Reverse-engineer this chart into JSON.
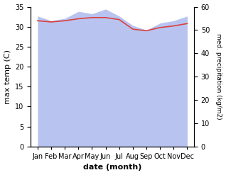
{
  "months": [
    "Jan",
    "Feb",
    "Mar",
    "Apr",
    "May",
    "Jun",
    "Jul",
    "Aug",
    "Sep",
    "Oct",
    "Nov",
    "Dec"
  ],
  "max_temp": [
    31.5,
    31.2,
    31.5,
    32.0,
    32.3,
    32.3,
    31.8,
    29.4,
    29.0,
    29.8,
    30.2,
    30.8
  ],
  "precipitation": [
    56,
    54,
    55,
    58,
    57,
    59,
    56,
    52,
    50,
    53,
    54,
    56
  ],
  "temp_color": "#d94040",
  "precip_fill_color": "#b8c4ef",
  "xlabel": "date (month)",
  "ylabel_left": "max temp (C)",
  "ylabel_right": "med. precipitation (kg/m2)",
  "ylim_left": [
    0,
    35
  ],
  "ylim_right": [
    0,
    60
  ],
  "yticks_left": [
    0,
    5,
    10,
    15,
    20,
    25,
    30,
    35
  ],
  "yticks_right": [
    0,
    10,
    20,
    30,
    40,
    50,
    60
  ],
  "xlabel_fontsize": 8,
  "ylabel_fontsize": 8,
  "tick_fontsize": 7
}
